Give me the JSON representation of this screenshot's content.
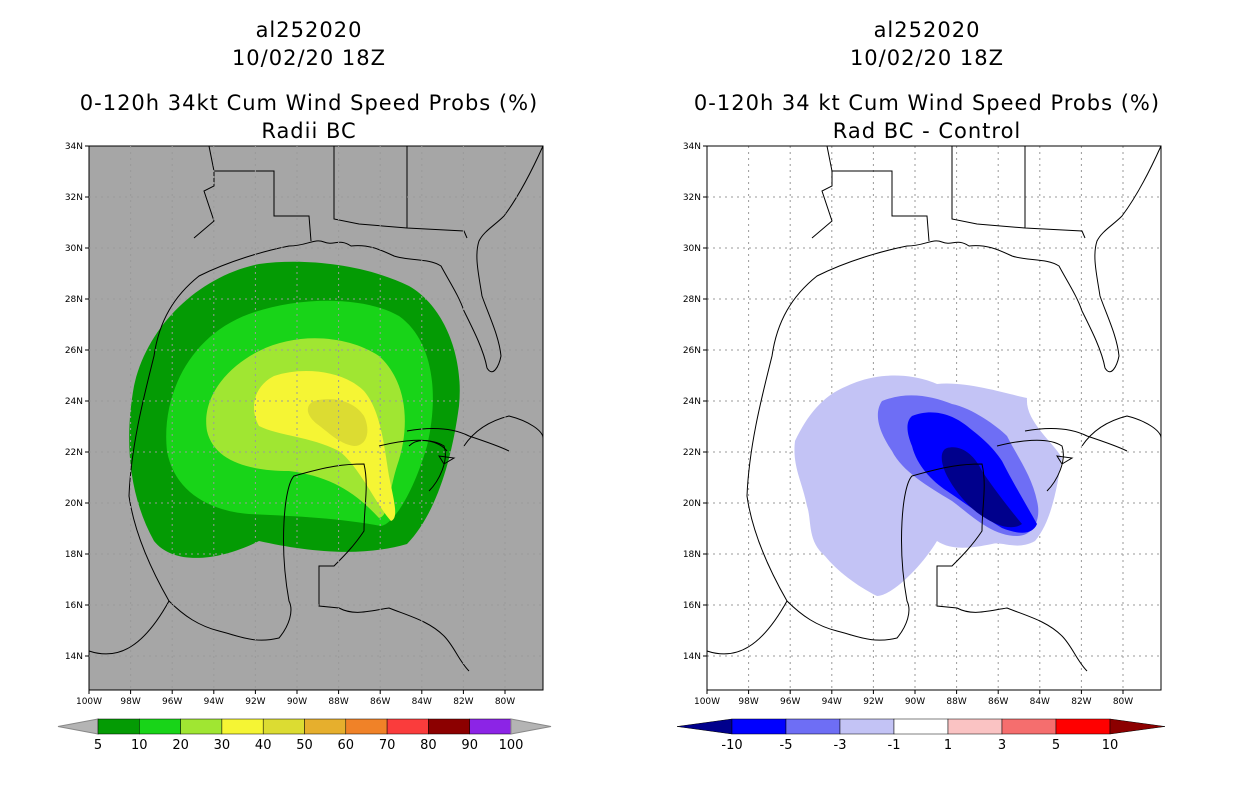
{
  "panels": [
    {
      "storm_id": "al252020",
      "datetime": "10/02/20 18Z",
      "title": "0-120h 34kt Cum Wind Speed Probs (%)",
      "subtitle": "Radii BC",
      "background": "#a6a6a6",
      "colorbar_labels": [
        "5",
        "10",
        "20",
        "30",
        "40",
        "50",
        "60",
        "70",
        "80",
        "90",
        "100"
      ],
      "colorbar_colors": [
        "#049b04",
        "#18d418",
        "#a0e632",
        "#f5f534",
        "#dcdc32",
        "#e6af2d",
        "#f08228",
        "#fa3c3c",
        "#8c0000",
        "#8c24e6"
      ],
      "arrow_color": "#b4b4b4"
    },
    {
      "storm_id": "al252020",
      "datetime": "10/02/20 18Z",
      "title": "0-120h 34 kt Cum Wind Speed Probs (%)",
      "subtitle": "Rad BC - Control",
      "background": "#ffffff",
      "colorbar_labels": [
        "-10",
        "-5",
        "-3",
        "-1",
        "1",
        "3",
        "5",
        "10"
      ],
      "colorbar_colors": [
        "#0000ff",
        "#6e6ef5",
        "#c3c3f5",
        "#ffffff",
        "#fac3c3",
        "#f56e6e",
        "#ff0000"
      ],
      "arrow_left_color": "#00008c",
      "arrow_right_color": "#8c0000"
    }
  ],
  "map": {
    "lat_labels": [
      "34N",
      "32N",
      "30N",
      "28N",
      "26N",
      "24N",
      "22N",
      "20N",
      "18N",
      "16N",
      "14N"
    ],
    "lon_labels": [
      "100W",
      "98W",
      "96W",
      "94W",
      "92W",
      "90W",
      "88W",
      "86W",
      "84W",
      "82W",
      "80W"
    ]
  }
}
